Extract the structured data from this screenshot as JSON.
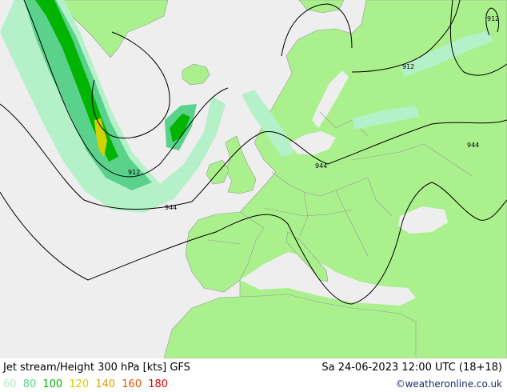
{
  "title": "Jet stream/Height 300 hPa [kts] GFS",
  "datetime": "Sa 24-06-2023 12:00 UTC (18+18)",
  "credit": "©weatheronline.co.uk",
  "legend": [
    {
      "label": "60",
      "color": "#b4f0c8"
    },
    {
      "label": "80",
      "color": "#5ad28c"
    },
    {
      "label": "100",
      "color": "#00b400"
    },
    {
      "label": "120",
      "color": "#d2d200"
    },
    {
      "label": "140",
      "color": "#e6a000"
    },
    {
      "label": "160",
      "color": "#e65000"
    },
    {
      "label": "180",
      "color": "#e60000"
    }
  ],
  "contour_labels": [
    "912",
    "912",
    "912",
    "944",
    "944",
    "944"
  ],
  "colors": {
    "sea": "#eeeeee",
    "land": "#aaf08c",
    "border": "#9a9a9a",
    "contour": "#000000"
  }
}
